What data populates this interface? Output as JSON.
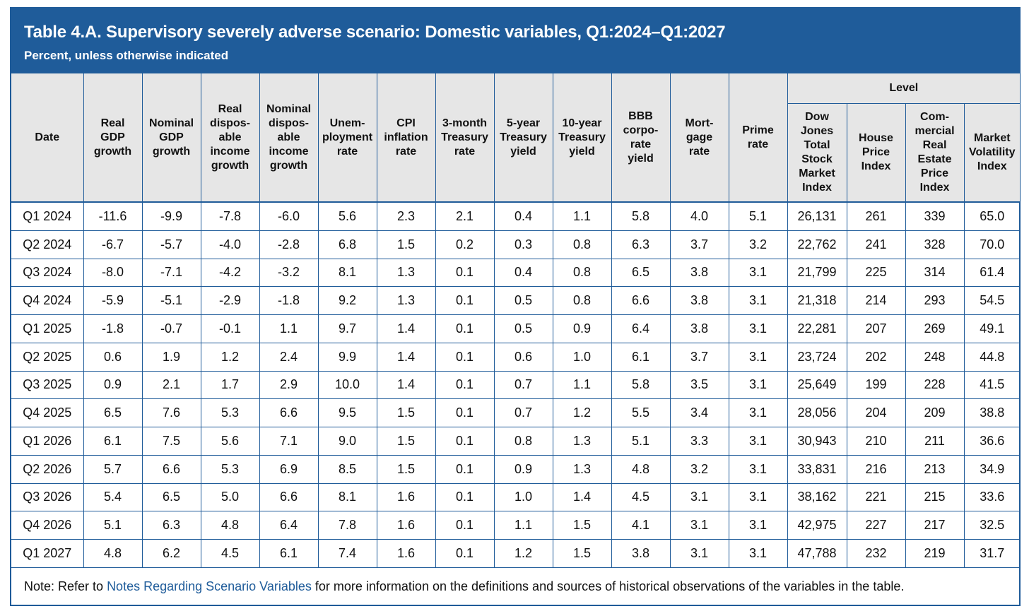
{
  "title": "Table 4.A. Supervisory severely adverse scenario: Domestic variables, Q1:2024–Q1:2027",
  "subtitle": "Percent, unless otherwise indicated",
  "level_header": "Level",
  "columns": [
    [
      "Date"
    ],
    [
      "Real",
      "GDP",
      "growth"
    ],
    [
      "Nominal",
      "GDP",
      "growth"
    ],
    [
      "Real",
      "dispos-",
      "able",
      "income",
      "growth"
    ],
    [
      "Nominal",
      "dispos-",
      "able",
      "income",
      "growth"
    ],
    [
      "Unem-",
      "ployment",
      "rate"
    ],
    [
      "CPI",
      "inflation",
      "rate"
    ],
    [
      "3-month",
      "Treasury",
      "rate"
    ],
    [
      "5-year",
      "Treasury",
      "yield"
    ],
    [
      "10-year",
      "Treasury",
      "yield"
    ],
    [
      "BBB",
      "corpo-",
      "rate",
      "yield"
    ],
    [
      "Mort-",
      "gage",
      "rate"
    ],
    [
      "Prime",
      "rate"
    ],
    [
      "Dow Jones",
      "Total",
      "Stock",
      "Market",
      "Index"
    ],
    [
      "House",
      "Price",
      "Index"
    ],
    [
      "Com-",
      "mercial",
      "Real",
      "Estate",
      "Price",
      "Index"
    ],
    [
      "Market",
      "Volatility",
      "Index"
    ]
  ],
  "rows": [
    [
      "Q1 2024",
      "-11.6",
      "-9.9",
      "-7.8",
      "-6.0",
      "5.6",
      "2.3",
      "2.1",
      "0.4",
      "1.1",
      "5.8",
      "4.0",
      "5.1",
      "26,131",
      "261",
      "339",
      "65.0"
    ],
    [
      "Q2 2024",
      "-6.7",
      "-5.7",
      "-4.0",
      "-2.8",
      "6.8",
      "1.5",
      "0.2",
      "0.3",
      "0.8",
      "6.3",
      "3.7",
      "3.2",
      "22,762",
      "241",
      "328",
      "70.0"
    ],
    [
      "Q3 2024",
      "-8.0",
      "-7.1",
      "-4.2",
      "-3.2",
      "8.1",
      "1.3",
      "0.1",
      "0.4",
      "0.8",
      "6.5",
      "3.8",
      "3.1",
      "21,799",
      "225",
      "314",
      "61.4"
    ],
    [
      "Q4 2024",
      "-5.9",
      "-5.1",
      "-2.9",
      "-1.8",
      "9.2",
      "1.3",
      "0.1",
      "0.5",
      "0.8",
      "6.6",
      "3.8",
      "3.1",
      "21,318",
      "214",
      "293",
      "54.5"
    ],
    [
      "Q1 2025",
      "-1.8",
      "-0.7",
      "-0.1",
      "1.1",
      "9.7",
      "1.4",
      "0.1",
      "0.5",
      "0.9",
      "6.4",
      "3.8",
      "3.1",
      "22,281",
      "207",
      "269",
      "49.1"
    ],
    [
      "Q2 2025",
      "0.6",
      "1.9",
      "1.2",
      "2.4",
      "9.9",
      "1.4",
      "0.1",
      "0.6",
      "1.0",
      "6.1",
      "3.7",
      "3.1",
      "23,724",
      "202",
      "248",
      "44.8"
    ],
    [
      "Q3 2025",
      "0.9",
      "2.1",
      "1.7",
      "2.9",
      "10.0",
      "1.4",
      "0.1",
      "0.7",
      "1.1",
      "5.8",
      "3.5",
      "3.1",
      "25,649",
      "199",
      "228",
      "41.5"
    ],
    [
      "Q4 2025",
      "6.5",
      "7.6",
      "5.3",
      "6.6",
      "9.5",
      "1.5",
      "0.1",
      "0.7",
      "1.2",
      "5.5",
      "3.4",
      "3.1",
      "28,056",
      "204",
      "209",
      "38.8"
    ],
    [
      "Q1 2026",
      "6.1",
      "7.5",
      "5.6",
      "7.1",
      "9.0",
      "1.5",
      "0.1",
      "0.8",
      "1.3",
      "5.1",
      "3.3",
      "3.1",
      "30,943",
      "210",
      "211",
      "36.6"
    ],
    [
      "Q2 2026",
      "5.7",
      "6.6",
      "5.3",
      "6.9",
      "8.5",
      "1.5",
      "0.1",
      "0.9",
      "1.3",
      "4.8",
      "3.2",
      "3.1",
      "33,831",
      "216",
      "213",
      "34.9"
    ],
    [
      "Q3 2026",
      "5.4",
      "6.5",
      "5.0",
      "6.6",
      "8.1",
      "1.6",
      "0.1",
      "1.0",
      "1.4",
      "4.5",
      "3.1",
      "3.1",
      "38,162",
      "221",
      "215",
      "33.6"
    ],
    [
      "Q4 2026",
      "5.1",
      "6.3",
      "4.8",
      "6.4",
      "7.8",
      "1.6",
      "0.1",
      "1.1",
      "1.5",
      "4.1",
      "3.1",
      "3.1",
      "42,975",
      "227",
      "217",
      "32.5"
    ],
    [
      "Q1 2027",
      "4.8",
      "6.2",
      "4.5",
      "6.1",
      "7.4",
      "1.6",
      "0.1",
      "1.2",
      "1.5",
      "3.8",
      "3.1",
      "3.1",
      "47,788",
      "232",
      "219",
      "31.7"
    ]
  ],
  "note": {
    "prefix": "Note: Refer to ",
    "link": "Notes Regarding Scenario Variables",
    "suffix": " for more information on the definitions and sources of historical observations of the variables in the table."
  },
  "colors": {
    "header_bg": "#1f5c9a",
    "column_header_bg": "#e6e6e6",
    "link": "#1f5c9a",
    "rule": "#1f5b99"
  }
}
